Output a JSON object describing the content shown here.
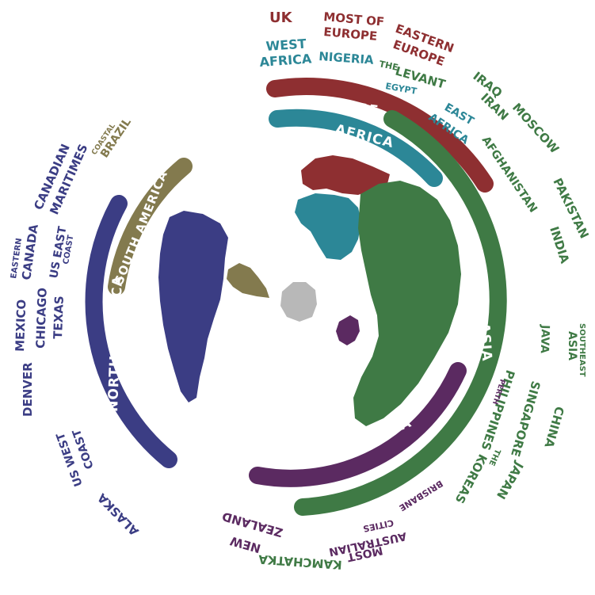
{
  "colors": {
    "europe": "#8e2f31",
    "africa": "#2c8797",
    "asia": "#3f7a45",
    "oceania": "#5b2a61",
    "north_america": "#3b3d84",
    "south_america": "#837a4e",
    "antarctica": "#b8b8b8"
  },
  "bands": {
    "europe": "EUROPE",
    "africa": "AFRICA",
    "asia": "ASIA",
    "oceania": "OCEANIA",
    "north_america": "NORTH AMERICA",
    "south_america": "SOUTH AMERICA"
  },
  "labels": {
    "uk": "UK",
    "most_of_europe_1": "MOST OF",
    "most_of_europe_2": "EUROPE",
    "eastern_europe_1": "EASTERN",
    "eastern_europe_2": "EUROPE",
    "west_africa_1": "WEST",
    "west_africa_2": "AFRICA",
    "nigeria": "NIGERIA",
    "the_levant_1": "THE",
    "the_levant_2": "LEVANT",
    "egypt": "EGYPT",
    "east_africa_1": "EAST",
    "east_africa_2": "AFRICA",
    "iraq": "IRAQ",
    "iran": "IRAN",
    "moscow": "MOSCOW",
    "afghanistan": "AFGHANISTAN",
    "pakistan": "PAKISTAN",
    "india": "INDIA",
    "southeast_asia_1": "SOUTHEAST",
    "southeast_asia_2": "ASIA",
    "java": "JAVA",
    "china": "CHINA",
    "singapore": "SINGAPORE",
    "philippines": "PHILIPPINES",
    "perth": "PERTH",
    "the_koreas_1": "THE",
    "the_koreas_2": "KOREAS",
    "japan": "JAPAN",
    "brisbane": "BRISBANE",
    "most_australian_cities_1": "MOST",
    "most_australian_cities_2": "AUSTRALIAN",
    "most_australian_cities_3": "CITIES",
    "new_zealand_1": "NEW",
    "new_zealand_2": "ZEALAND",
    "kamchatka": "KAMCHATKA",
    "alaska": "ALASKA",
    "us_west_coast_1": "US WEST",
    "us_west_coast_2": "COAST",
    "denver": "DENVER",
    "mexico": "MEXICO",
    "chicago": "CHICAGO",
    "texas": "TEXAS",
    "eastern_canada_1": "EASTERN",
    "eastern_canada_2": "CANADA",
    "us_east_coast_1": "US EAST",
    "us_east_coast_2": "COAST",
    "canadian_maritimes_1": "CANADIAN",
    "canadian_maritimes_2": "MARITIMES",
    "coastal_brazil_1": "COASTAL",
    "coastal_brazil_2": "BRAZIL"
  }
}
